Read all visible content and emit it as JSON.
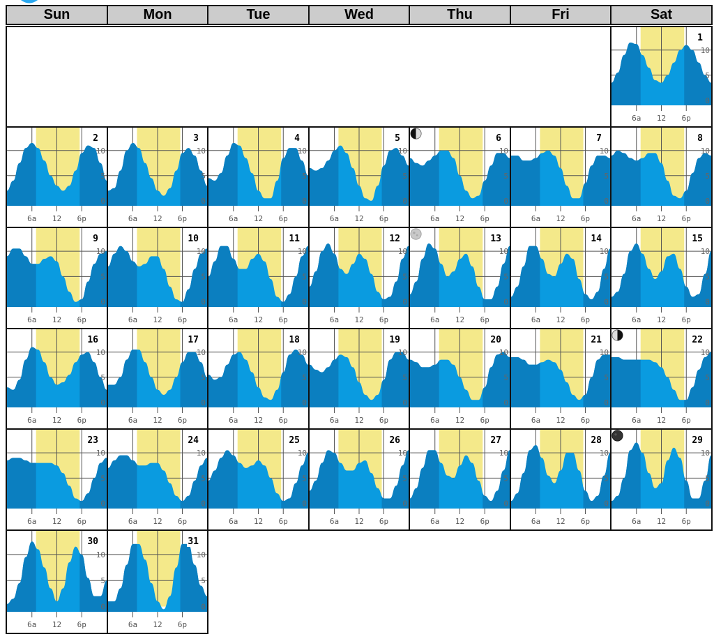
{
  "weekdays": [
    "Sun",
    "Mon",
    "Tue",
    "Wed",
    "Thu",
    "Fri",
    "Sat"
  ],
  "colors": {
    "header_bg": "#cccccc",
    "daylight": "#f4e98a",
    "tide_fill": "#0a9be0",
    "night_band": "#0b7fc0",
    "grid": "#555555",
    "logo": "#2aa8f0"
  },
  "chart_data": {
    "type": "area",
    "title": "",
    "x_ticks": [
      "6a",
      "12",
      "6p"
    ],
    "y_ticks": [
      "10",
      "5",
      "0"
    ],
    "ylim": [
      -1,
      14
    ],
    "x_unit": "hour of day",
    "first_weekday_index": 6,
    "days": [
      {
        "day": "1",
        "moon": null,
        "sunrise": 7.0,
        "sunset": 17.5,
        "tide": [
          3.5,
          5.5,
          9,
          11.5,
          11.2,
          9,
          6.5,
          4,
          3.5,
          5,
          7.5,
          10,
          11,
          10,
          7.5,
          5,
          3.5
        ]
      },
      {
        "day": "2",
        "moon": null,
        "sunrise": 7.0,
        "sunset": 17.5,
        "tide": [
          2,
          4,
          7.5,
          10.5,
          11.5,
          10.5,
          8,
          5,
          3,
          2,
          3,
          6,
          9.5,
          11,
          10.5,
          7.5,
          4
        ]
      },
      {
        "day": "3",
        "moon": null,
        "sunrise": 7.0,
        "sunset": 17.5,
        "tide": [
          2,
          2.5,
          6,
          10,
          11.5,
          10.5,
          7.5,
          4.5,
          2,
          1,
          2.5,
          6,
          9.5,
          10.5,
          9,
          6,
          3
        ]
      },
      {
        "day": "4",
        "moon": null,
        "sunrise": 7.0,
        "sunset": 17.5,
        "tide": [
          4.5,
          4,
          5.5,
          9,
          11.5,
          11,
          8.5,
          5.5,
          2,
          0.5,
          0.5,
          4,
          8.5,
          10.5,
          10.5,
          8,
          5
        ]
      },
      {
        "day": "5",
        "moon": null,
        "sunrise": 7.0,
        "sunset": 17.5,
        "tide": [
          6.5,
          6,
          6.5,
          8,
          10,
          11,
          9.5,
          6.5,
          3,
          0.5,
          0,
          3,
          7,
          10,
          10.5,
          9,
          7
        ]
      },
      {
        "day": "6",
        "moon": "first",
        "sunrise": 7.0,
        "sunset": 17.5,
        "tide": [
          8.5,
          7.5,
          7,
          8,
          9,
          10,
          10,
          8.5,
          5,
          2,
          0.5,
          1,
          4,
          7,
          9.5,
          9.5,
          8.5
        ]
      },
      {
        "day": "7",
        "moon": null,
        "sunrise": 7.0,
        "sunset": 17.5,
        "tide": [
          9,
          9,
          8,
          8,
          8.5,
          9.5,
          10,
          9,
          6.5,
          3,
          0.5,
          0.5,
          3.5,
          7,
          9,
          9,
          8.5
        ]
      },
      {
        "day": "8",
        "moon": null,
        "sunrise": 7.0,
        "sunset": 17.5,
        "tide": [
          9,
          10,
          9.5,
          8.5,
          8,
          8.5,
          9.5,
          9.5,
          7.5,
          4,
          1,
          0.5,
          2,
          5.5,
          8.5,
          9.5,
          9
        ]
      },
      {
        "day": "9",
        "moon": null,
        "sunrise": 7.0,
        "sunset": 17.5,
        "tide": [
          9,
          10.5,
          10.5,
          9,
          7.5,
          7.5,
          8.5,
          9,
          8,
          5,
          2,
          0,
          0.5,
          4,
          7.5,
          9.5,
          10
        ]
      },
      {
        "day": "10",
        "moon": null,
        "sunrise": 7.0,
        "sunset": 17.5,
        "tide": [
          7,
          9.5,
          11,
          10,
          8,
          7,
          7.5,
          9,
          9,
          6.5,
          3,
          0.5,
          0,
          2.5,
          6.5,
          9.5,
          10.5
        ]
      },
      {
        "day": "11",
        "moon": null,
        "sunrise": 7.0,
        "sunset": 17.5,
        "tide": [
          5,
          8,
          11,
          11,
          8.5,
          6.5,
          6.5,
          8.5,
          9.5,
          8,
          4.5,
          1,
          0,
          1.5,
          5,
          9,
          11
        ]
      },
      {
        "day": "12",
        "moon": null,
        "sunrise": 7.0,
        "sunset": 17.5,
        "tide": [
          3,
          6,
          10,
          11.5,
          9.5,
          6.5,
          5.5,
          7.5,
          9.5,
          8.5,
          5.5,
          2,
          0.5,
          1,
          4,
          8.5,
          11
        ]
      },
      {
        "day": "13",
        "moon": "full",
        "sunrise": 7.0,
        "sunset": 17.5,
        "tide": [
          1.5,
          4,
          8.5,
          11.5,
          10.5,
          7.5,
          5,
          6,
          8.5,
          9.5,
          7,
          3,
          0.5,
          0.5,
          3,
          7.5,
          11
        ]
      },
      {
        "day": "14",
        "moon": null,
        "sunrise": 7.0,
        "sunset": 17.5,
        "tide": [
          1,
          3,
          7,
          11,
          11,
          8.5,
          5.5,
          5,
          7.5,
          9.5,
          8.5,
          4.5,
          1.5,
          0.5,
          2,
          6.5,
          10.5
        ]
      },
      {
        "day": "15",
        "moon": null,
        "sunrise": 7.0,
        "sunset": 17.5,
        "tide": [
          1,
          2,
          5.5,
          10,
          11.5,
          9.5,
          6.5,
          4.5,
          6,
          9,
          9.5,
          6.5,
          3,
          1,
          1.5,
          5.5,
          10
        ]
      },
      {
        "day": "16",
        "moon": null,
        "sunrise": 7.0,
        "sunset": 17.5,
        "tide": [
          3,
          2.5,
          4.5,
          8.5,
          11,
          10.5,
          8,
          5,
          3.5,
          4,
          5.5,
          8,
          9.5,
          10,
          8,
          5,
          2.5
        ]
      },
      {
        "day": "17",
        "moon": null,
        "sunrise": 7.0,
        "sunset": 17.5,
        "tide": [
          3.5,
          3.5,
          5,
          8.5,
          10.5,
          10.5,
          8,
          5,
          2.5,
          1.5,
          2.5,
          5,
          8,
          10,
          10,
          8,
          5
        ]
      },
      {
        "day": "18",
        "moon": null,
        "sunrise": 7.0,
        "sunset": 17.5,
        "tide": [
          5.5,
          4.5,
          5,
          7.5,
          9.5,
          10,
          8.5,
          6,
          3,
          1,
          0.5,
          2.5,
          6,
          9.5,
          10.5,
          9.5,
          7.5
        ]
      },
      {
        "day": "19",
        "moon": null,
        "sunrise": 7.0,
        "sunset": 17.5,
        "tide": [
          7.5,
          6.5,
          6,
          7,
          8.5,
          9.5,
          9,
          7,
          4,
          1.5,
          0.5,
          1.5,
          4.5,
          8.5,
          10,
          10,
          8.5
        ]
      },
      {
        "day": "20",
        "moon": null,
        "sunrise": 7.0,
        "sunset": 17.5,
        "tide": [
          8.5,
          8,
          7,
          7,
          7.5,
          8.5,
          8.5,
          7.5,
          5,
          2.5,
          0.5,
          0.5,
          3,
          7,
          9.5,
          10,
          9
        ]
      },
      {
        "day": "21",
        "moon": null,
        "sunrise": 7.0,
        "sunset": 17.5,
        "tide": [
          9,
          9,
          8.5,
          7.5,
          7.5,
          8,
          8.5,
          8,
          6.5,
          4,
          1.5,
          0.5,
          1.5,
          5,
          8.5,
          9.5,
          9.5
        ]
      },
      {
        "day": "22",
        "moon": "last",
        "sunrise": 7.0,
        "sunset": 17.5,
        "tide": [
          9,
          9,
          8.5,
          8.5,
          8.5,
          8.5,
          8.5,
          8,
          7,
          5,
          2.5,
          0.5,
          0.5,
          3,
          6.5,
          9,
          10
        ]
      },
      {
        "day": "23",
        "moon": null,
        "sunrise": 7.0,
        "sunset": 17.5,
        "tide": [
          8.5,
          9,
          9,
          8.5,
          8,
          8,
          8,
          8,
          7.5,
          6,
          3.5,
          1,
          0.5,
          2,
          5,
          8,
          9
        ]
      },
      {
        "day": "24",
        "moon": null,
        "sunrise": 7.0,
        "sunset": 17.5,
        "tide": [
          7,
          8.5,
          9.5,
          9.5,
          8.5,
          7.5,
          7.5,
          8,
          8,
          6.5,
          4,
          1.5,
          0.5,
          1.5,
          4.5,
          7.5,
          9
        ]
      },
      {
        "day": "25",
        "moon": null,
        "sunrise": 7.0,
        "sunset": 17.5,
        "tide": [
          4.5,
          6.5,
          9,
          10.5,
          9.5,
          8,
          7,
          7.5,
          8.5,
          7.5,
          5,
          2,
          0.5,
          1,
          4,
          7.5,
          10
        ]
      },
      {
        "day": "26",
        "moon": null,
        "sunrise": 7.0,
        "sunset": 17.5,
        "tide": [
          2.5,
          4.5,
          8,
          10.5,
          10,
          8,
          6.5,
          6.5,
          8,
          8.5,
          6,
          3,
          1,
          1,
          3.5,
          7.5,
          10.5
        ]
      },
      {
        "day": "27",
        "moon": null,
        "sunrise": 7.0,
        "sunset": 17.5,
        "tide": [
          1,
          3,
          7,
          10.5,
          10.5,
          8,
          5.5,
          5,
          7.5,
          9.5,
          8,
          4.5,
          1.5,
          0.5,
          2.5,
          6.5,
          10.5
        ]
      },
      {
        "day": "28",
        "moon": null,
        "sunrise": 7.0,
        "sunset": 17.5,
        "tide": [
          0.5,
          2,
          6,
          10.5,
          11.5,
          9,
          5.5,
          4,
          6.5,
          10,
          10,
          6.5,
          2.5,
          0.5,
          1.5,
          5.5,
          10
        ]
      },
      {
        "day": "29",
        "moon": "new",
        "sunrise": 7.0,
        "sunset": 17.5,
        "tide": [
          0.5,
          1.5,
          5,
          10.5,
          12,
          10,
          6,
          3,
          4,
          8.5,
          11,
          9,
          4.5,
          1,
          1,
          4.5,
          9.5
        ]
      },
      {
        "day": "30",
        "moon": null,
        "sunrise": 7.0,
        "sunset": 17.5,
        "tide": [
          0.5,
          1.5,
          4.5,
          9.5,
          12.5,
          11,
          7.5,
          3.5,
          1,
          3.5,
          8.5,
          11.5,
          10,
          5.5,
          2,
          2,
          5
        ]
      },
      {
        "day": "31",
        "moon": null,
        "sunrise": 7.0,
        "sunset": 17.5,
        "tide": [
          1,
          1,
          3.5,
          8,
          12,
          12,
          9,
          4.5,
          1,
          -0.5,
          2,
          7.5,
          12,
          12,
          8,
          4,
          2
        ]
      }
    ]
  }
}
